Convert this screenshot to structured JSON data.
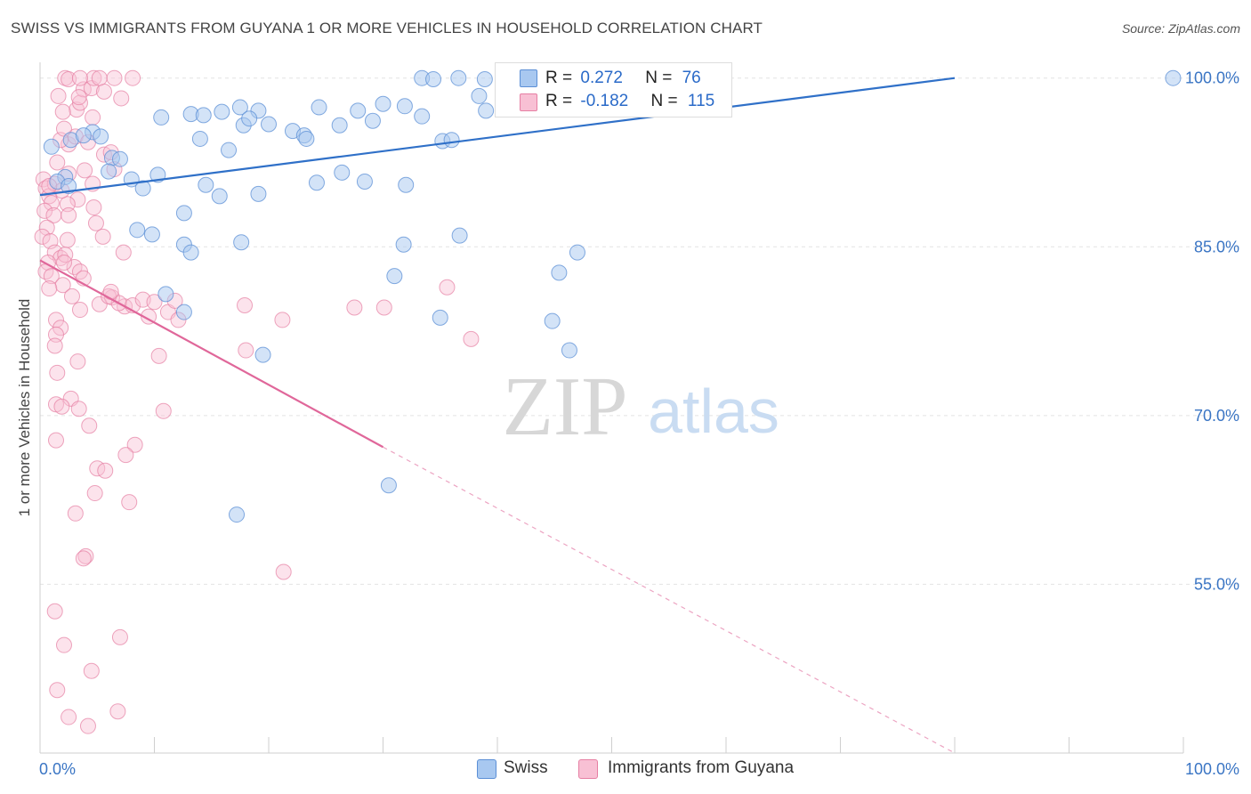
{
  "title": "SWISS VS IMMIGRANTS FROM GUYANA 1 OR MORE VEHICLES IN HOUSEHOLD CORRELATION CHART",
  "source": "Source: ZipAtlas.com",
  "watermark": {
    "zip": "ZIP",
    "atlas": "atlas"
  },
  "legend_top": {
    "rows": [
      {
        "r_label": "R = ",
        "r_value": "0.272",
        "n_label": "N = ",
        "n_value": "76"
      },
      {
        "r_label": "R = ",
        "r_value": "-0.182",
        "n_label": "N = ",
        "n_value": "115"
      }
    ]
  },
  "legend_bottom": {
    "swiss": "Swiss",
    "guyana": "Immigrants from Guyana"
  },
  "colors": {
    "swiss_fill": "#a8c8f0",
    "swiss_stroke": "#5b8fd6",
    "swiss_line": "#2f70c8",
    "guyana_fill": "#f8c0d4",
    "guyana_stroke": "#e67fa3",
    "guyana_line": "#e0679a",
    "tick_text": "#3a75c4",
    "grid": "#e4e4e4"
  },
  "chart_data": {
    "type": "scatter",
    "title": "SWISS VS IMMIGRANTS FROM GUYANA 1 OR MORE VEHICLES IN HOUSEHOLD CORRELATION CHART",
    "xlabel": "",
    "ylabel": "1 or more Vehicles in Household",
    "xlim": [
      0,
      100
    ],
    "ylim": [
      40,
      101.4
    ],
    "x_tick_labels": [
      "0.0%",
      "100.0%"
    ],
    "y_ticks": [
      55,
      70,
      85,
      100
    ],
    "y_tick_labels": [
      "55.0%",
      "70.0%",
      "85.0%",
      "100.0%"
    ],
    "grid": true,
    "legend_position": "top-center",
    "series": [
      {
        "name": "Swiss",
        "R": 0.272,
        "N": 76,
        "trend": {
          "x0": 0,
          "y0": 89.6,
          "x1": 80,
          "y1": 100
        },
        "points": [
          [
            2.7,
            94.5
          ],
          [
            4.6,
            95.2
          ],
          [
            5.3,
            94.8
          ],
          [
            3.8,
            94.9
          ],
          [
            1.0,
            93.9
          ],
          [
            6.3,
            92.9
          ],
          [
            7.0,
            92.8
          ],
          [
            6.0,
            91.7
          ],
          [
            2.2,
            91.2
          ],
          [
            1.5,
            90.8
          ],
          [
            2.5,
            90.4
          ],
          [
            8.0,
            91.0
          ],
          [
            10.3,
            91.4
          ],
          [
            9.0,
            90.2
          ],
          [
            14.0,
            94.6
          ],
          [
            16.5,
            93.6
          ],
          [
            13.2,
            96.8
          ],
          [
            10.6,
            96.5
          ],
          [
            14.3,
            96.7
          ],
          [
            17.5,
            97.4
          ],
          [
            19.1,
            97.1
          ],
          [
            15.9,
            97.0
          ],
          [
            24.4,
            97.4
          ],
          [
            30.0,
            97.7
          ],
          [
            27.8,
            97.1
          ],
          [
            31.9,
            97.5
          ],
          [
            33.4,
            96.6
          ],
          [
            17.8,
            95.8
          ],
          [
            18.3,
            96.4
          ],
          [
            20.0,
            95.9
          ],
          [
            22.1,
            95.3
          ],
          [
            23.1,
            94.9
          ],
          [
            23.3,
            94.6
          ],
          [
            26.2,
            95.8
          ],
          [
            29.1,
            96.2
          ],
          [
            35.2,
            94.4
          ],
          [
            36.0,
            94.5
          ],
          [
            38.4,
            98.4
          ],
          [
            39.0,
            97.1
          ],
          [
            26.4,
            91.6
          ],
          [
            28.4,
            90.8
          ],
          [
            32.0,
            90.5
          ],
          [
            24.2,
            90.7
          ],
          [
            19.1,
            89.7
          ],
          [
            15.7,
            89.5
          ],
          [
            14.5,
            90.5
          ],
          [
            9.8,
            86.1
          ],
          [
            8.5,
            86.5
          ],
          [
            12.6,
            88.0
          ],
          [
            12.6,
            85.2
          ],
          [
            17.6,
            85.4
          ],
          [
            13.2,
            84.5
          ],
          [
            31.8,
            85.2
          ],
          [
            36.7,
            86.0
          ],
          [
            47.0,
            84.5
          ],
          [
            45.4,
            82.7
          ],
          [
            31.0,
            82.4
          ],
          [
            11.0,
            80.8
          ],
          [
            12.6,
            79.2
          ],
          [
            35.0,
            78.7
          ],
          [
            30.5,
            63.8
          ],
          [
            19.5,
            75.4
          ],
          [
            44.8,
            78.4
          ],
          [
            46.3,
            75.8
          ],
          [
            17.2,
            61.2
          ],
          [
            33.4,
            100
          ],
          [
            34.4,
            99.9
          ],
          [
            38.9,
            99.9
          ],
          [
            42.4,
            100
          ],
          [
            44.5,
            100
          ],
          [
            47.0,
            100
          ],
          [
            51.1,
            100
          ],
          [
            53.0,
            99.8
          ],
          [
            99.1,
            100
          ],
          [
            36.6,
            100
          ],
          [
            44.3,
            99.9
          ]
        ]
      },
      {
        "name": "Immigrants from Guyana",
        "R": -0.182,
        "N": 115,
        "trend": {
          "x0": 0,
          "y0": 83.8,
          "x1": 30,
          "y1": 67.2
        },
        "trend_dashed": {
          "x0": 30,
          "y0": 67.2,
          "x1": 80,
          "y1": 40
        },
        "points": [
          [
            0.3,
            91.0
          ],
          [
            0.5,
            90.2
          ],
          [
            0.8,
            89.5
          ],
          [
            1.0,
            88.9
          ],
          [
            0.4,
            88.2
          ],
          [
            1.2,
            87.8
          ],
          [
            0.6,
            86.7
          ],
          [
            0.2,
            85.9
          ],
          [
            0.9,
            85.5
          ],
          [
            2.4,
            85.6
          ],
          [
            1.3,
            84.5
          ],
          [
            1.8,
            84.0
          ],
          [
            0.7,
            83.6
          ],
          [
            2.2,
            84.3
          ],
          [
            3.0,
            83.2
          ],
          [
            3.5,
            82.8
          ],
          [
            0.5,
            82.8
          ],
          [
            1.0,
            82.4
          ],
          [
            2.0,
            81.6
          ],
          [
            0.8,
            81.3
          ],
          [
            2.8,
            80.6
          ],
          [
            3.5,
            79.4
          ],
          [
            5.2,
            79.9
          ],
          [
            6.3,
            80.5
          ],
          [
            7.4,
            79.7
          ],
          [
            6.9,
            80.0
          ],
          [
            8.1,
            79.8
          ],
          [
            9.0,
            80.3
          ],
          [
            10.0,
            80.1
          ],
          [
            11.2,
            79.2
          ],
          [
            1.4,
            78.5
          ],
          [
            1.8,
            77.8
          ],
          [
            1.4,
            77.2
          ],
          [
            1.3,
            76.2
          ],
          [
            1.5,
            73.8
          ],
          [
            3.3,
            74.8
          ],
          [
            2.7,
            71.5
          ],
          [
            1.4,
            71.0
          ],
          [
            1.9,
            70.8
          ],
          [
            3.4,
            70.6
          ],
          [
            4.3,
            69.1
          ],
          [
            1.4,
            67.8
          ],
          [
            8.3,
            67.4
          ],
          [
            7.5,
            66.5
          ],
          [
            5.0,
            65.3
          ],
          [
            5.7,
            65.1
          ],
          [
            4.8,
            63.1
          ],
          [
            7.8,
            62.3
          ],
          [
            3.1,
            61.3
          ],
          [
            4.0,
            57.5
          ],
          [
            3.8,
            57.3
          ],
          [
            1.3,
            52.6
          ],
          [
            2.1,
            49.6
          ],
          [
            7.0,
            50.3
          ],
          [
            4.5,
            47.3
          ],
          [
            1.5,
            45.6
          ],
          [
            2.5,
            43.2
          ],
          [
            6.8,
            43.7
          ],
          [
            4.2,
            42.4
          ],
          [
            21.3,
            56.1
          ],
          [
            17.9,
            79.8
          ],
          [
            18.0,
            75.8
          ],
          [
            21.2,
            78.5
          ],
          [
            27.5,
            79.6
          ],
          [
            30.1,
            79.6
          ],
          [
            35.6,
            81.4
          ],
          [
            37.7,
            76.8
          ],
          [
            10.8,
            70.4
          ],
          [
            10.4,
            75.3
          ],
          [
            7.3,
            84.5
          ],
          [
            5.5,
            85.9
          ],
          [
            4.9,
            87.1
          ],
          [
            3.3,
            89.2
          ],
          [
            2.4,
            88.8
          ],
          [
            4.6,
            90.6
          ],
          [
            1.3,
            90.6
          ],
          [
            1.9,
            90.0
          ],
          [
            2.5,
            91.5
          ],
          [
            3.9,
            91.8
          ],
          [
            5.6,
            93.2
          ],
          [
            6.5,
            91.9
          ],
          [
            2.5,
            94.1
          ],
          [
            1.8,
            94.5
          ],
          [
            3.1,
            94.8
          ],
          [
            4.2,
            94.3
          ],
          [
            6.2,
            93.4
          ],
          [
            2.1,
            95.5
          ],
          [
            3.2,
            97.2
          ],
          [
            4.6,
            96.5
          ],
          [
            3.5,
            97.8
          ],
          [
            2.0,
            97.0
          ],
          [
            1.6,
            98.4
          ],
          [
            3.8,
            99.0
          ],
          [
            3.4,
            98.3
          ],
          [
            4.5,
            99.1
          ],
          [
            7.1,
            98.2
          ],
          [
            5.6,
            98.8
          ],
          [
            8.1,
            100
          ],
          [
            4.7,
            100
          ],
          [
            2.2,
            100
          ],
          [
            5.2,
            100
          ],
          [
            2.5,
            99.9
          ],
          [
            3.5,
            100
          ],
          [
            6.5,
            100
          ],
          [
            1.5,
            92.5
          ],
          [
            0.8,
            90.4
          ],
          [
            4.7,
            88.5
          ],
          [
            2.5,
            87.8
          ],
          [
            6.0,
            80.6
          ],
          [
            3.8,
            82.2
          ],
          [
            2.1,
            83.6
          ],
          [
            9.5,
            78.8
          ],
          [
            11.8,
            80.2
          ],
          [
            12.1,
            78.5
          ],
          [
            6.2,
            81.0
          ]
        ]
      }
    ]
  }
}
